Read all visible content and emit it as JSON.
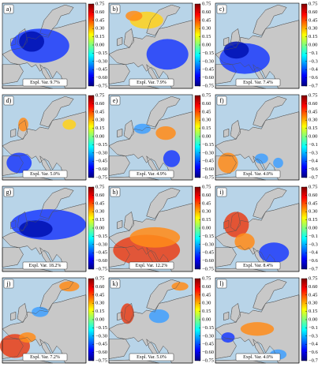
{
  "panels": [
    {
      "label": "a)",
      "expl_var": "Expl. Var. 9.7%"
    },
    {
      "label": "b)",
      "expl_var": "Expl. Var. 7.9%"
    },
    {
      "label": "c)",
      "expl_var": "Expl. Var. 7.4%"
    },
    {
      "label": "d)",
      "expl_var": "Expl. Var. 5.0%"
    },
    {
      "label": "e)",
      "expl_var": "Expl. Var. 4.9%"
    },
    {
      "label": "f)",
      "expl_var": "Expl. Var. 4.0%"
    },
    {
      "label": "g)",
      "expl_var": "Expl. Var. 18.2%"
    },
    {
      "label": "h)",
      "expl_var": "Expl. Var. 12.2%"
    },
    {
      "label": "i)",
      "expl_var": "Expl. Var. 8.4%"
    },
    {
      "label": "j)",
      "expl_var": "Expl. Var. 7.2%"
    },
    {
      "label": "k)",
      "expl_var": "Expl. Var. 5.0%"
    },
    {
      "label": "l)",
      "expl_var": "Expl. Var. 4.0%"
    }
  ],
  "colorbar": {
    "lim": [
      -0.75,
      0.75
    ],
    "colors": [
      "#00007f",
      "#0000ff",
      "#007fff",
      "#00ffff",
      "#7fff7f",
      "#ffff00",
      "#ff7f00",
      "#ff0000",
      "#7f0000"
    ],
    "ticks": [
      {
        "value": 0.75,
        "label": "0.75"
      },
      {
        "value": 0.6,
        "label": "0.60"
      },
      {
        "value": 0.45,
        "label": "0.45"
      },
      {
        "value": 0.3,
        "label": "0.30"
      },
      {
        "value": 0.15,
        "label": "0.15"
      },
      {
        "value": 0,
        "label": "0.00"
      },
      {
        "value": -0.15,
        "label": "−0.15"
      },
      {
        "value": -0.3,
        "label": "−0.30"
      },
      {
        "value": -0.45,
        "label": "−0.45"
      },
      {
        "value": -0.6,
        "label": "−0.60"
      },
      {
        "value": -0.75,
        "label": "−0.75"
      }
    ]
  }
}
